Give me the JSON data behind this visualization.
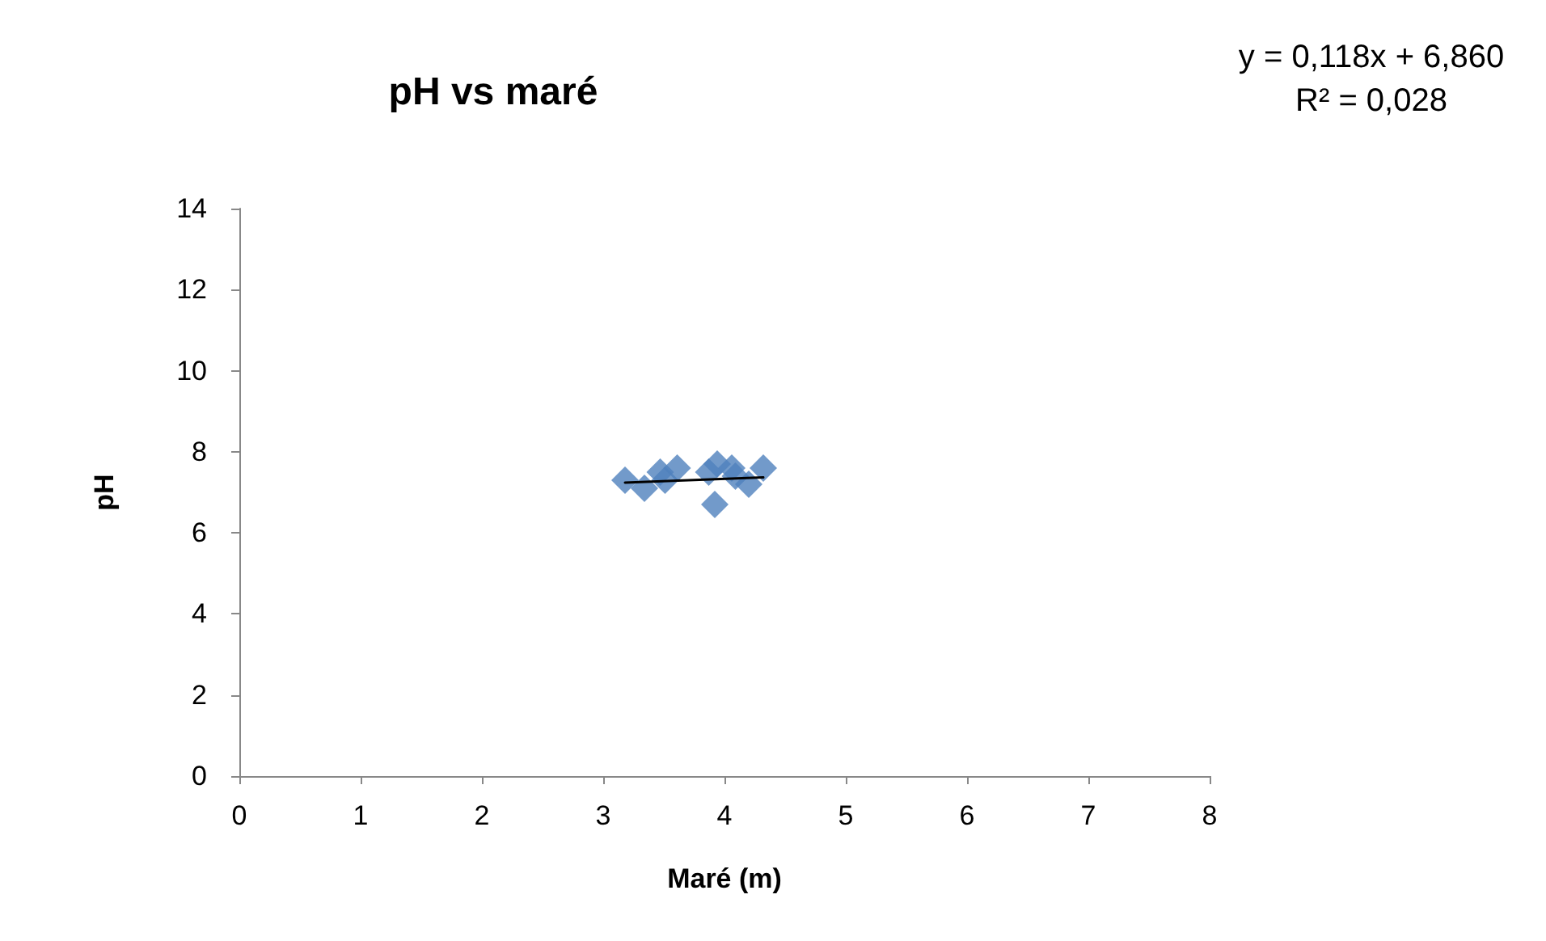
{
  "chart_data": {
    "type": "scatter",
    "title": "pH vs maré",
    "xlabel": "Maré (m)",
    "ylabel": "pH",
    "annotations": [
      "y = 0,118x + 6,860",
      "R² = 0,028"
    ],
    "xlim": [
      0,
      8
    ],
    "xticks": [
      0,
      1,
      2,
      3,
      4,
      5,
      6,
      7,
      8
    ],
    "ylim": [
      0,
      14
    ],
    "yticks": [
      0,
      2,
      4,
      6,
      8,
      10,
      12,
      14
    ],
    "grid": false,
    "marker": "diamond",
    "series": [
      {
        "color": "#4f81bd",
        "x": [
          3.18,
          3.34,
          3.47,
          3.51,
          3.61,
          3.87,
          3.92,
          3.94,
          4.06,
          4.09,
          4.2,
          4.32
        ],
        "values": [
          7.3,
          7.1,
          7.5,
          7.3,
          7.6,
          7.5,
          6.7,
          7.7,
          7.6,
          7.4,
          7.2,
          7.6
        ]
      },
      {
        "type": "line",
        "color": "#000000",
        "marker": "none",
        "x": [
          3.18,
          4.32
        ],
        "values": [
          7.24,
          7.37
        ]
      }
    ]
  }
}
